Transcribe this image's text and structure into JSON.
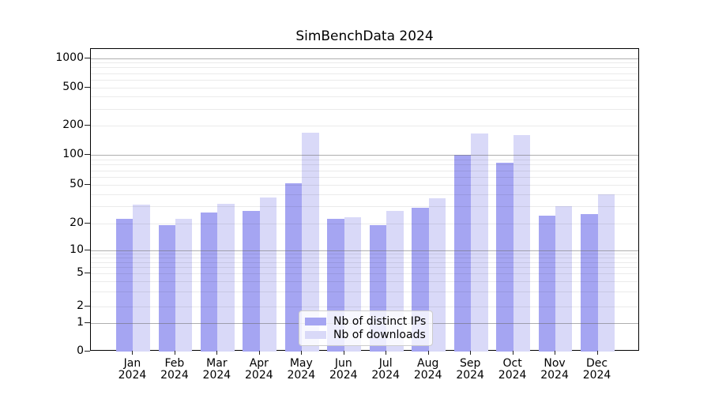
{
  "title": "SimBenchData 2024",
  "colors": {
    "bar_ips": "#a5a5f2",
    "bar_downloads": "#d9d9f8",
    "grid_major": "#b3b3b3",
    "grid_minor": "#ebebeb",
    "axis": "#000000",
    "legend_border": "#cccccc"
  },
  "legend": {
    "items": [
      {
        "label": "Nb of distinct IPs",
        "color_key": "bar_ips"
      },
      {
        "label": "Nb of downloads",
        "color_key": "bar_downloads"
      }
    ],
    "position": "lower center"
  },
  "y_axis": {
    "tick_labels": [
      "0",
      "1",
      "2",
      "5",
      "10",
      "20",
      "50",
      "100",
      "200",
      "500",
      "1000"
    ],
    "scale": "symlog"
  },
  "x_axis": {
    "tick_labels": [
      "Jan 2024",
      "Feb 2024",
      "Mar 2024",
      "Apr 2024",
      "May 2024",
      "Jun 2024",
      "Jul 2024",
      "Aug 2024",
      "Sep 2024",
      "Oct 2024",
      "Nov 2024",
      "Dec 2024"
    ]
  },
  "chart_data": {
    "type": "bar",
    "title": "SimBenchData 2024",
    "categories": [
      "Jan 2024",
      "Feb 2024",
      "Mar 2024",
      "Apr 2024",
      "May 2024",
      "Jun 2024",
      "Jul 2024",
      "Aug 2024",
      "Sep 2024",
      "Oct 2024",
      "Nov 2024",
      "Dec 2024"
    ],
    "series": [
      {
        "name": "Nb of distinct IPs",
        "key": "ips",
        "values": [
          22,
          19,
          26,
          27,
          52,
          22,
          19,
          29,
          100,
          83,
          24,
          25
        ]
      },
      {
        "name": "Nb of downloads",
        "key": "downloads",
        "values": [
          31,
          22,
          32,
          37,
          170,
          23,
          27,
          36,
          165,
          160,
          30,
          40
        ]
      }
    ],
    "xlabel": "",
    "ylabel": "",
    "yscale": "symlog",
    "ylim": [
      0,
      1300
    ],
    "y_ticks": [
      0,
      1,
      2,
      5,
      10,
      20,
      50,
      100,
      200,
      500,
      1000
    ],
    "grid": "on",
    "grid_above_bars": true,
    "legend_position": "lower center"
  }
}
